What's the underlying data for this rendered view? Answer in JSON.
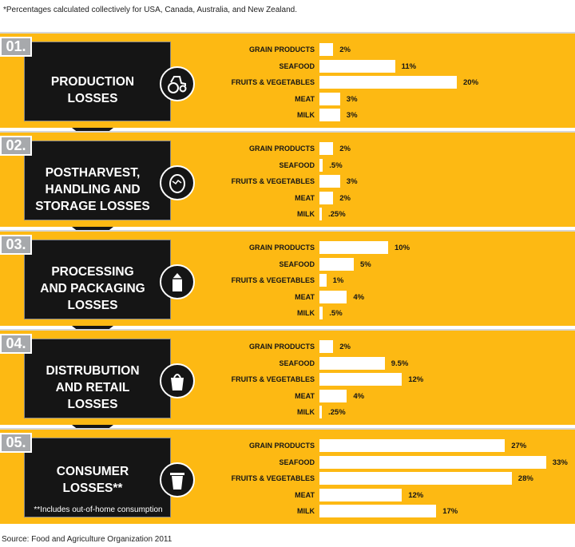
{
  "note": "*Percentages calculated collectively for USA, Canada, Australia, and New Zealand.",
  "source": "Source: Food and Agriculture Organization 2011",
  "colors": {
    "panel": "#fdb913",
    "dark": "#151515",
    "number_box": "#a7a9ac",
    "bar": "#ffffff"
  },
  "chart_data": {
    "type": "bar",
    "orientation": "horizontal",
    "categories": [
      "GRAIN PRODUCTS",
      "SEAFOOD",
      "FRUITS & VEGETABLES",
      "MEAT",
      "MILK"
    ],
    "x_max": 33,
    "stages": [
      {
        "number": "01.",
        "title": "PRODUCTION\nLOSSES",
        "icon": "tractor-icon",
        "values": [
          2,
          11,
          20,
          3,
          3
        ],
        "labels": [
          "2%",
          "11%",
          "20%",
          "3%",
          "3%"
        ]
      },
      {
        "number": "02.",
        "title": "POSTHARVEST,\nHANDLING AND\nSTORAGE LOSSES",
        "icon": "egg-icon",
        "values": [
          2,
          0.5,
          3,
          2,
          0.25
        ],
        "labels": [
          "2%",
          ".5%",
          "3%",
          "2%",
          ".25%"
        ]
      },
      {
        "number": "03.",
        "title": "PROCESSING\nAND PACKAGING\nLOSSES",
        "icon": "milk-carton-icon",
        "values": [
          10,
          5,
          1,
          4,
          0.5
        ],
        "labels": [
          "10%",
          "5%",
          "1%",
          "4%",
          ".5%"
        ]
      },
      {
        "number": "04.",
        "title": "DISTRUBUTION\nAND RETAIL\nLOSSES",
        "icon": "shopping-bag-icon",
        "values": [
          2,
          9.5,
          12,
          4,
          0.25
        ],
        "labels": [
          "2%",
          "9.5%",
          "12%",
          "4%",
          ".25%"
        ]
      },
      {
        "number": "05.",
        "title": "CONSUMER\nLOSSES**",
        "icon": "trash-can-icon",
        "footnote": "**Includes out-of-home consumption",
        "values": [
          27,
          33,
          28,
          12,
          17
        ],
        "labels": [
          "27%",
          "33%",
          "28%",
          "12%",
          "17%"
        ]
      }
    ]
  }
}
